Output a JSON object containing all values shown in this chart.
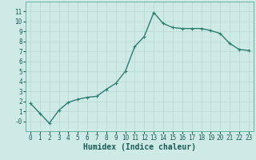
{
  "x": [
    0,
    1,
    2,
    3,
    4,
    5,
    6,
    7,
    8,
    9,
    10,
    11,
    12,
    13,
    14,
    15,
    16,
    17,
    18,
    19,
    20,
    21,
    22,
    23
  ],
  "y": [
    1.8,
    0.8,
    -0.2,
    1.1,
    1.9,
    2.2,
    2.4,
    2.5,
    3.2,
    3.8,
    5.0,
    7.5,
    8.5,
    10.9,
    9.8,
    9.4,
    9.3,
    9.3,
    9.3,
    9.1,
    8.8,
    7.8,
    7.2,
    7.1
  ],
  "line_color": "#2e7d6e",
  "marker": "+",
  "marker_size": 3.5,
  "marker_color": "#2e7d6e",
  "bg_color": "#ceeae6",
  "grid_color": "#b8d8d2",
  "xlabel": "Humidex (Indice chaleur)",
  "ylim": [
    -1,
    12
  ],
  "xlim": [
    -0.5,
    23.5
  ],
  "yticks": [
    0,
    1,
    2,
    3,
    4,
    5,
    6,
    7,
    8,
    9,
    10,
    11
  ],
  "xticks": [
    0,
    1,
    2,
    3,
    4,
    5,
    6,
    7,
    8,
    9,
    10,
    11,
    12,
    13,
    14,
    15,
    16,
    17,
    18,
    19,
    20,
    21,
    22,
    23
  ],
  "xlabel_fontsize": 7,
  "tick_fontsize": 5.5,
  "line_width": 1.0,
  "marker_linewidth": 0.8
}
